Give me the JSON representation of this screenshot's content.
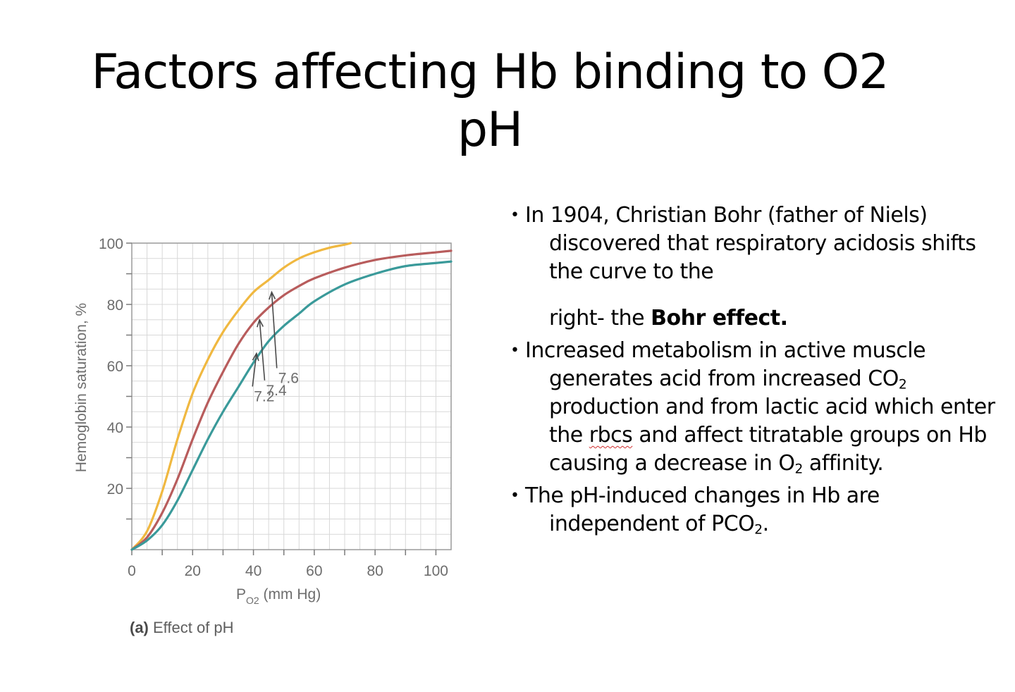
{
  "slide": {
    "title_line1": "Factors affecting Hb binding to O2",
    "title_line2": "pH"
  },
  "figure": {
    "caption_tag": "(a)",
    "caption_text": " Effect of pH"
  },
  "bullets": {
    "b1_line1": "In 1904, Christian Bohr (father of Niels) discovered that respiratory acidosis shifts the curve to the",
    "b1_line2_pre": "right- the ",
    "b1_line2_bold": "Bohr effect.",
    "b2_a": "Increased metabolism in active muscle generates acid from increased CO",
    "b2_sub1": "2",
    "b2_b": " production and from lactic acid which enter the ",
    "b2_rbcs": "rbcs",
    "b2_c": " and affect titratable groups on Hb causing a decrease in O",
    "b2_sub2": "2",
    "b2_d": " affinity.",
    "b3_a": "The pH-induced changes in Hb are independent of PCO",
    "b3_sub": "2",
    "b3_b": "."
  },
  "chart_data": {
    "type": "line",
    "xlabel_main": "P",
    "xlabel_sub": "O2",
    "xlabel_unit": " (mm Hg)",
    "ylabel": "Hemoglobin saturation, %",
    "xlim": [
      0,
      105
    ],
    "ylim": [
      0,
      100
    ],
    "x_ticks": [
      0,
      20,
      40,
      60,
      80,
      100
    ],
    "y_ticks": [
      20,
      40,
      60,
      80,
      100
    ],
    "grid": true,
    "series": [
      {
        "name": "7.6",
        "color": "#f0b840",
        "x": [
          0,
          5,
          10,
          15,
          20,
          25,
          30,
          35,
          40,
          45,
          50,
          55,
          60,
          65,
          70,
          72
        ],
        "y": [
          0,
          6,
          19,
          36,
          51,
          62,
          71,
          78,
          84,
          88,
          92,
          95,
          97,
          98.5,
          99.5,
          100
        ]
      },
      {
        "name": "7.4",
        "color": "#b85c5c",
        "x": [
          0,
          5,
          10,
          15,
          20,
          25,
          30,
          35,
          40,
          45,
          50,
          55,
          60,
          70,
          80,
          90,
          100,
          105
        ],
        "y": [
          0,
          4,
          12,
          23,
          36,
          48,
          58,
          67,
          74,
          79,
          83,
          86,
          88.5,
          92,
          94.5,
          96,
          97,
          97.5
        ]
      },
      {
        "name": "7.2",
        "color": "#3a9a9a",
        "x": [
          0,
          5,
          10,
          15,
          20,
          25,
          30,
          35,
          40,
          45,
          50,
          55,
          60,
          70,
          80,
          90,
          100,
          105
        ],
        "y": [
          0,
          3,
          8,
          16,
          26,
          36,
          45,
          53,
          61,
          68,
          73,
          77,
          81,
          86.5,
          90,
          92.5,
          93.5,
          94
        ]
      }
    ],
    "annotations": [
      {
        "text": "7.6",
        "x": 50,
        "y": 56,
        "target_x": 46,
        "target_y": 84
      },
      {
        "text": "7.4",
        "x": 46,
        "y": 52,
        "target_x": 42,
        "target_y": 75
      },
      {
        "text": "7.2",
        "x": 42,
        "y": 50,
        "target_x": 41,
        "target_y": 64
      }
    ]
  }
}
